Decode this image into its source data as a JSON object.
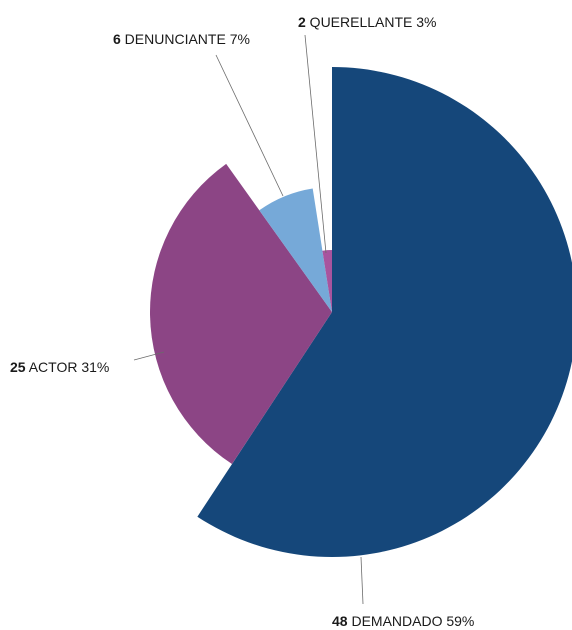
{
  "chart_data": {
    "type": "pie",
    "variant": "variable-radius",
    "slices": [
      {
        "label": "DEMANDADO",
        "value": 48,
        "percent": "59%",
        "color": "#15477a"
      },
      {
        "label": "ACTOR",
        "value": 25,
        "percent": "31%",
        "color": "#8c4585"
      },
      {
        "label": "DENUNCIANTE",
        "value": 6,
        "percent": "7%",
        "color": "#76a9d8"
      },
      {
        "label": "QUERELLANTE",
        "value": 2,
        "percent": "3%",
        "color": "#a8549e"
      }
    ],
    "legend": "none",
    "labels": "outside with leader lines"
  }
}
